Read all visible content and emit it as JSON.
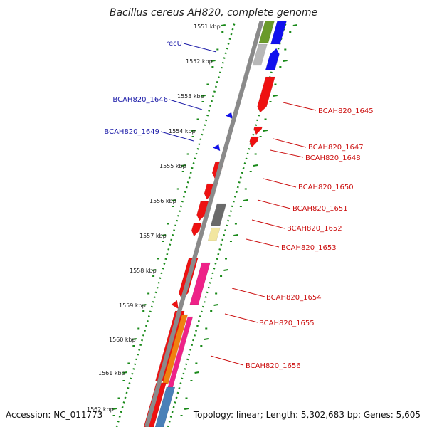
{
  "map": {
    "title": "Bacillus cereus AH820, complete genome",
    "accession": "Accession: NC_011773",
    "topology": "Topology: linear; Length: 5,302,683 bp; Genes: 5,605"
  },
  "ticks": [
    {
      "label": "1551 kbp"
    },
    {
      "label": "1552 kbp"
    },
    {
      "label": "1553 kbp"
    },
    {
      "label": "1554 kbp"
    },
    {
      "label": "1555 kbp"
    },
    {
      "label": "1556 kbp"
    },
    {
      "label": "1557 kbp"
    },
    {
      "label": "1558 kbp"
    },
    {
      "label": "1559 kbp"
    },
    {
      "label": "1560 kbp"
    },
    {
      "label": "1561 kbp"
    },
    {
      "label": "1562 kbp"
    }
  ],
  "genes_left": [
    {
      "name": "recU"
    },
    {
      "name": "BCAH820_1646"
    },
    {
      "name": "BCAH820_1649"
    }
  ],
  "genes_right": [
    {
      "name": "BCAH820_1645"
    },
    {
      "name": "BCAH820_1647"
    },
    {
      "name": "BCAH820_1648"
    },
    {
      "name": "BCAH820_1650"
    },
    {
      "name": "BCAH820_1651"
    },
    {
      "name": "BCAH820_1652"
    },
    {
      "name": "BCAH820_1653"
    },
    {
      "name": "BCAH820_1654"
    },
    {
      "name": "BCAH820_1655"
    },
    {
      "name": "BCAH820_1656"
    }
  ],
  "colors": {
    "backbone": "#8a8a8a",
    "tick_marks": "#1a8a1a",
    "label_blue": "#1a1aa8",
    "label_red": "#cc1111",
    "gene_red": "#ee1111",
    "gene_blue": "#1111ee",
    "gene_green": "#6a9a2a",
    "gene_gray": "#6a6a6a",
    "gene_yellow": "#f2e6a0",
    "gene_pink": "#ee2288",
    "gene_orange": "#f08010",
    "gene_steelblue": "#4a80b8"
  }
}
